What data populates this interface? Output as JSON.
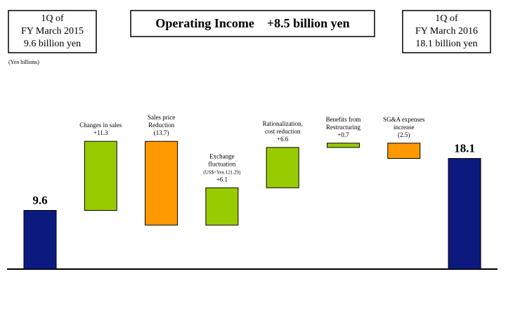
{
  "header": {
    "left_box": [
      "1Q of",
      "FY March 2015",
      "9.6 billion yen"
    ],
    "title": "Operating Income    +8.5 billion yen",
    "right_box": [
      "1Q of",
      "FY March 2016",
      "18.1 billion yen"
    ]
  },
  "unit": "(Yen billions)",
  "chart_data": {
    "type": "waterfall",
    "categories": [
      null,
      [
        "Changes in sales"
      ],
      [
        "Sales price",
        "Reduction"
      ],
      [
        "Exchange",
        "fluctuation"
      ],
      [
        "Rationalization,",
        "cost reduction"
      ],
      [
        "Benefits from",
        "Restructuring"
      ],
      [
        "SG&A expenses",
        "increase"
      ],
      null
    ],
    "notes": [
      null,
      null,
      null,
      "(US$=Yen 121.29)",
      null,
      null,
      null,
      null
    ],
    "measures": [
      "total",
      "relative",
      "relative",
      "relative",
      "relative",
      "relative",
      "relative",
      "total"
    ],
    "values": [
      9.6,
      11.3,
      -13.7,
      6.1,
      6.6,
      0.7,
      -2.5,
      18.1
    ],
    "value_labels": [
      "9.6",
      "+11.3",
      "(13.7)",
      "+6.1",
      "+6.6",
      "+0.7",
      "(2.5)",
      "18.1"
    ],
    "colors": {
      "total": "#0c1a80",
      "increase": "#99cc00",
      "decrease": "#ff9900"
    }
  }
}
